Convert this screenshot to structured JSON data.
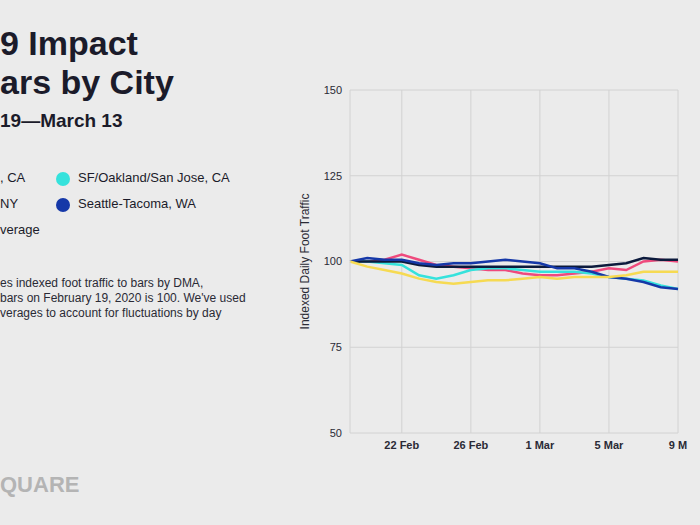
{
  "chart_data": {
    "type": "line",
    "title": [
      "9 Impact",
      "ars by City"
    ],
    "subtitle": "19—March 13",
    "notes": [
      "es indexed foot traffic to bars by DMA,",
      "bars on February 19, 2020 is 100. We've used",
      "verages to account for fluctuations by day"
    ],
    "logo": "QUARE",
    "ylabel": "Indexed Daily Foot Traffic",
    "categories": [
      null,
      null,
      null,
      "22 Feb",
      null,
      null,
      null,
      "26 Feb",
      null,
      null,
      null,
      "1 Mar",
      null,
      null,
      null,
      "5 Mar",
      null,
      null,
      null,
      "9 M"
    ],
    "series": [
      {
        "name": ", CA",
        "color": "#ef4a7d",
        "values": [
          100,
          100,
          100.5,
          102,
          100.5,
          99,
          98.5,
          98,
          97.5,
          97.5,
          96.5,
          96,
          96,
          96.5,
          97,
          98,
          97.5,
          100,
          100.5,
          100
        ]
      },
      {
        "name": "SF/Oakland/San Jose, CA",
        "color": "#35e2dc",
        "values": [
          100,
          100,
          99.5,
          99,
          96,
          95,
          96,
          97.5,
          98,
          98,
          97.5,
          97,
          97,
          97,
          96.5,
          95.5,
          95,
          94.5,
          93,
          92
        ]
      },
      {
        "name": "NY",
        "color": "#0c1a3c",
        "values": [
          100,
          100,
          100,
          100,
          99,
          98.5,
          98.5,
          98.5,
          98.5,
          98.5,
          98.5,
          98.5,
          98.5,
          98.5,
          98.5,
          99,
          99.5,
          101,
          100.5,
          100.5
        ]
      },
      {
        "name": "Seattle-Tacoma, WA",
        "color": "#1538a8",
        "values": [
          100,
          101,
          100.5,
          100.5,
          99.5,
          99,
          99.5,
          99.5,
          100,
          100.5,
          100,
          99.5,
          98,
          98,
          97,
          95.5,
          95,
          94,
          92.5,
          92
        ]
      },
      {
        "name": "verage",
        "color": "#f6da52",
        "values": [
          100,
          98.5,
          97.5,
          96.5,
          95,
          94,
          93.5,
          94,
          94.5,
          94.5,
          95,
          95.5,
          95,
          95.5,
          95.5,
          95.5,
          96,
          97,
          97,
          97
        ]
      }
    ],
    "ylim": [
      50,
      150
    ],
    "yticks": [
      50,
      75,
      100,
      125,
      150
    ],
    "grid": true,
    "legend": "top-left"
  }
}
